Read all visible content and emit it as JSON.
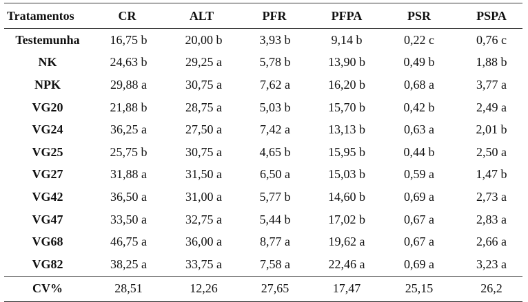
{
  "table": {
    "headers": [
      "Tratamentos",
      "CR",
      "ALT",
      "PFR",
      "PFPA",
      "PSR",
      "PSPA"
    ],
    "rows": [
      [
        "Testemunha",
        "16,75 b",
        "20,00 b",
        "3,93 b",
        "9,14 b",
        "0,22 c",
        "0,76 c"
      ],
      [
        "NK",
        "24,63 b",
        "29,25 a",
        "5,78 b",
        "13,90 b",
        "0,49 b",
        "1,88 b"
      ],
      [
        "NPK",
        "29,88 a",
        "30,75 a",
        "7,62 a",
        "16,20 b",
        "0,68 a",
        "3,77 a"
      ],
      [
        "VG20",
        "21,88 b",
        "28,75 a",
        "5,03 b",
        "15,70 b",
        "0,42 b",
        "2,49 a"
      ],
      [
        "VG24",
        "36,25 a",
        "27,50 a",
        "7,42 a",
        "13,13 b",
        "0,63 a",
        "2,01 b"
      ],
      [
        "VG25",
        "25,75 b",
        "30,75 a",
        "4,65 b",
        "15,95 b",
        "0,44 b",
        "2,50 a"
      ],
      [
        "VG27",
        "31,88 a",
        "31,50 a",
        "6,50 a",
        "15,03 b",
        "0,59 a",
        "1,47 b"
      ],
      [
        "VG42",
        "36,50 a",
        "31,00 a",
        "5,77 b",
        "14,60 b",
        "0,69 a",
        "2,73 a"
      ],
      [
        "VG47",
        "33,50 a",
        "32,75 a",
        "5,44 b",
        "17,02 b",
        "0,67 a",
        "2,83 a"
      ],
      [
        "VG68",
        "46,75 a",
        "36,00 a",
        "8,77 a",
        "19,62 a",
        "0,67 a",
        "2,66 a"
      ],
      [
        "VG82",
        "38,25 a",
        "33,75 a",
        "7,58 a",
        "22,46 a",
        "0,69 a",
        "3,23 a"
      ]
    ],
    "footer": [
      "CV%",
      "28,51",
      "12,26",
      "27,65",
      "17,47",
      "25,15",
      "26,2"
    ]
  }
}
